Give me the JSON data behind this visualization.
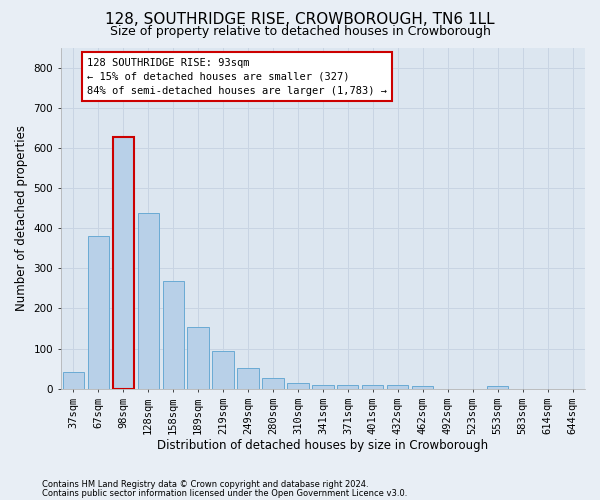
{
  "title": "128, SOUTHRIDGE RISE, CROWBOROUGH, TN6 1LL",
  "subtitle": "Size of property relative to detached houses in Crowborough",
  "xlabel": "Distribution of detached houses by size in Crowborough",
  "ylabel": "Number of detached properties",
  "footnote1": "Contains HM Land Registry data © Crown copyright and database right 2024.",
  "footnote2": "Contains public sector information licensed under the Open Government Licence v3.0.",
  "categories": [
    "37sqm",
    "67sqm",
    "98sqm",
    "128sqm",
    "158sqm",
    "189sqm",
    "219sqm",
    "249sqm",
    "280sqm",
    "310sqm",
    "341sqm",
    "371sqm",
    "401sqm",
    "432sqm",
    "462sqm",
    "492sqm",
    "523sqm",
    "553sqm",
    "583sqm",
    "614sqm",
    "644sqm"
  ],
  "values": [
    43,
    380,
    628,
    438,
    268,
    155,
    95,
    53,
    27,
    15,
    10,
    10,
    10,
    10,
    8,
    0,
    0,
    8,
    0,
    0,
    0
  ],
  "bar_color": "#b8d0e8",
  "bar_edge_color": "#6aaad4",
  "highlight_bar_index": 2,
  "annotation_text": "128 SOUTHRIDGE RISE: 93sqm\n← 15% of detached houses are smaller (327)\n84% of semi-detached houses are larger (1,783) →",
  "annotation_box_facecolor": "#ffffff",
  "annotation_box_edgecolor": "#cc0000",
  "red_color": "#cc0000",
  "ylim": [
    0,
    850
  ],
  "yticks": [
    0,
    100,
    200,
    300,
    400,
    500,
    600,
    700,
    800
  ],
  "grid_color": "#c8d4e3",
  "bg_color": "#e8eef5",
  "plot_bg_color": "#dce6f0",
  "title_fontsize": 11,
  "subtitle_fontsize": 9,
  "axis_label_fontsize": 8.5,
  "tick_fontsize": 7.5,
  "annotation_fontsize": 7.5
}
